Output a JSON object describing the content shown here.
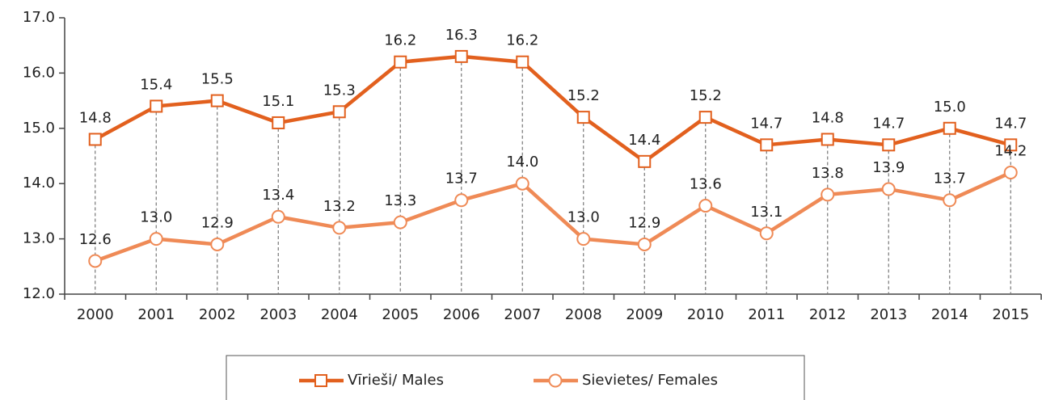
{
  "chart_data": {
    "type": "line",
    "categories": [
      "2000",
      "2001",
      "2002",
      "2003",
      "2004",
      "2005",
      "2006",
      "2007",
      "2008",
      "2009",
      "2010",
      "2011",
      "2012",
      "2013",
      "2014",
      "2015"
    ],
    "series": [
      {
        "name": "Vīrieši/ Males",
        "color": "#e2601e",
        "marker": "square",
        "values": [
          14.8,
          15.4,
          15.5,
          15.1,
          15.3,
          16.2,
          16.3,
          16.2,
          15.2,
          14.4,
          15.2,
          14.7,
          14.8,
          14.7,
          15.0,
          14.7
        ],
        "value_labels": [
          "14.8",
          "15.4",
          "15.5",
          "15.1",
          "15.3",
          "16.2",
          "16.3",
          "16.2",
          "15.2",
          "14.4",
          "15.2",
          "14.7",
          "14.8",
          "14.7",
          "15.0",
          "14.7"
        ]
      },
      {
        "name": "Sievietes/ Females",
        "color": "#ef8a56",
        "marker": "circle",
        "values": [
          12.6,
          13.0,
          12.9,
          13.4,
          13.2,
          13.3,
          13.7,
          14.0,
          13.0,
          12.9,
          13.6,
          13.1,
          13.8,
          13.9,
          13.7,
          14.2
        ],
        "value_labels": [
          "12.6",
          "13.0",
          "12.9",
          "13.4",
          "13.2",
          "13.3",
          "13.7",
          "14.0",
          "13.0",
          "12.9",
          "13.6",
          "13.1",
          "13.8",
          "13.9",
          "13.7",
          "14.2"
        ]
      }
    ],
    "ylim": [
      12,
      17
    ],
    "yticks": [
      {
        "value": 12,
        "label": "12.0"
      },
      {
        "value": 13,
        "label": "13.0"
      },
      {
        "value": 14,
        "label": "14.0"
      },
      {
        "value": 15,
        "label": "15.0"
      },
      {
        "value": 16,
        "label": "16.0"
      },
      {
        "value": 17,
        "label": "17.0"
      }
    ],
    "legend": "bottom"
  }
}
